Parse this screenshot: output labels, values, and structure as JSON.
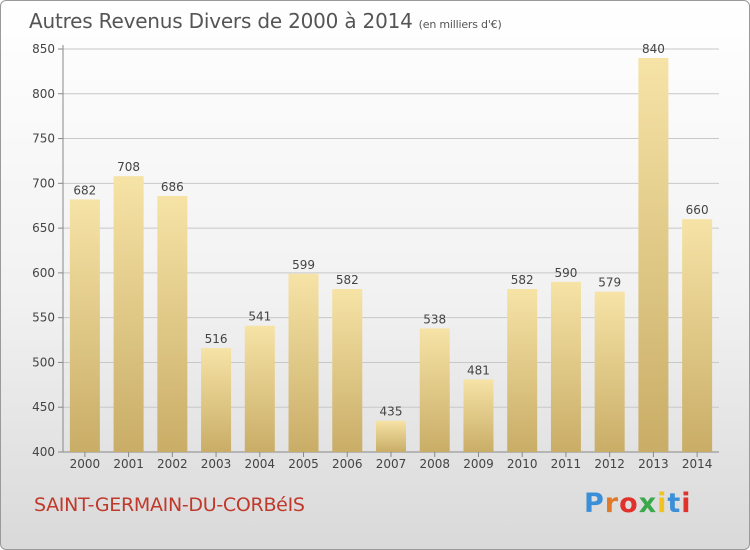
{
  "header": {
    "title": "Autres Revenus Divers de 2000 à 2014",
    "unit": "(en milliers d'€)"
  },
  "footer": {
    "commune": "SAINT-GERMAIN-DU-CORBéIS",
    "brand": "Proxiti"
  },
  "colors": {
    "bar_light": "#f6e3a6",
    "bar_dark": "#c9ad67",
    "commune_text": "#c0392b",
    "brand_letters": [
      "#3b8fd8",
      "#e07a2a",
      "#e0312b",
      "#3ba84a",
      "#f2c31b",
      "#3b8fd8",
      "#e0312b"
    ]
  },
  "chart_data": {
    "type": "bar",
    "title": "Autres Revenus Divers de 2000 à 2014",
    "ylabel": "",
    "xlabel": "",
    "categories": [
      "2000",
      "2001",
      "2002",
      "2003",
      "2004",
      "2005",
      "2006",
      "2007",
      "2008",
      "2009",
      "2010",
      "2011",
      "2012",
      "2013",
      "2014"
    ],
    "values": [
      682,
      708,
      686,
      516,
      541,
      599,
      582,
      435,
      538,
      481,
      582,
      590,
      579,
      840,
      660
    ],
    "ylim": [
      400,
      850
    ],
    "yticks": [
      400,
      450,
      500,
      550,
      600,
      650,
      700,
      750,
      800,
      850
    ],
    "grid": true
  }
}
